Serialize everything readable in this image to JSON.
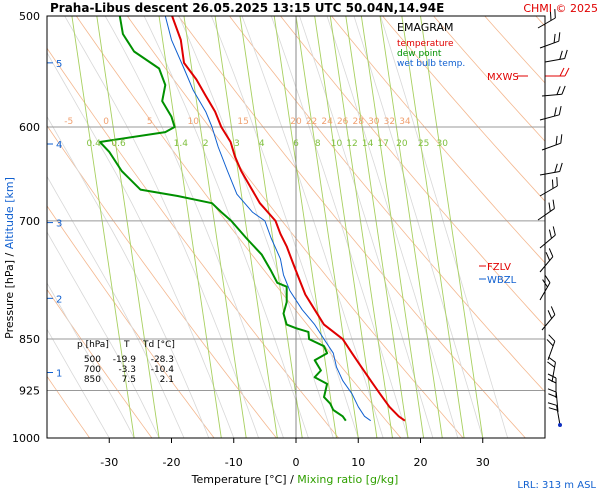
{
  "header": {
    "title": "Praha-Libus   descent   26.05.2025 13:15 UTC   50.04N,14.94E",
    "copyright": "CHMI © 2025"
  },
  "legend": {
    "title": "EMAGRAM",
    "items": [
      {
        "label": "temperature",
        "color": "#e00000"
      },
      {
        "label": "dew point",
        "color": "#009000"
      },
      {
        "label": "wet bulb temp.",
        "color": "#1060d0"
      }
    ]
  },
  "markers": {
    "mxws": {
      "label": "MXWS",
      "color": "#e00000"
    },
    "fzlv": {
      "label": "FZLV",
      "color": "#e00000"
    },
    "wbzl": {
      "label": "WBZL",
      "color": "#1060d0"
    }
  },
  "axes": {
    "ylabel_pressure": "Pressure [hPa]",
    "ylabel_sep": " / ",
    "ylabel_altitude": "Altitude [km]",
    "xlabel_temperature": "Temperature [°C]",
    "xlabel_sep": " / ",
    "xlabel_mixing": "Mixing ratio [g/kg]"
  },
  "lrl": "LRL: 313 m ASL",
  "table": {
    "header": [
      "p [hPa]",
      "T",
      "Td [°C]"
    ],
    "rows": [
      [
        "500",
        "-19.9",
        "-28.3"
      ],
      [
        "700",
        "-3.3",
        "-10.4"
      ],
      [
        "850",
        "7.5",
        "2.1"
      ]
    ]
  },
  "chart_data": {
    "type": "line",
    "x_range": [
      -40,
      40
    ],
    "y_range_hpa": [
      1000,
      500
    ],
    "pressure_ticks": [
      "500",
      "600",
      "700",
      "850",
      "925",
      "1000"
    ],
    "pressure_tick_values": [
      500,
      600,
      700,
      850,
      925,
      1000
    ],
    "temperature_ticks": [
      "-30",
      "-20",
      "-10",
      "0",
      "10",
      "20",
      "30"
    ],
    "temperature_tick_values": [
      -30,
      -20,
      -10,
      0,
      10,
      20,
      30
    ],
    "altitude_ticks": [
      "1",
      "2",
      "3",
      "4",
      "5"
    ],
    "altitude_tick_pressures": [
      898,
      795,
      702,
      617,
      540
    ],
    "isotherm_labels": [
      "-5",
      "0",
      "5",
      "10",
      "15",
      "20",
      "22",
      "24",
      "26",
      "28",
      "30",
      "32",
      "34"
    ],
    "isotherm_label_temps": [
      -36.5,
      -30.5,
      -23.5,
      -16.5,
      -8.5,
      0,
      2.5,
      5,
      7.5,
      10,
      12.5,
      15,
      17.5
    ],
    "mixing_labels": [
      "0.4",
      "0.6",
      "1.4",
      "2",
      "3",
      "4",
      "6",
      "8",
      "10",
      "12",
      "14",
      "17",
      "20",
      "25",
      "30"
    ],
    "mixing_label_temps": [
      -32.5,
      -28.5,
      -18.5,
      -14.5,
      -9.5,
      -5.5,
      0,
      3.5,
      6.5,
      9,
      11.5,
      14,
      17,
      20.5,
      23.5
    ],
    "series": [
      {
        "name": "temperature",
        "color": "#e00000",
        "points": [
          [
            -19.9,
            500
          ],
          [
            -18.5,
            520
          ],
          [
            -18,
            540
          ],
          [
            -16,
            555
          ],
          [
            -14.5,
            570
          ],
          [
            -13,
            585
          ],
          [
            -12,
            600
          ],
          [
            -10.5,
            615
          ],
          [
            -9.8,
            630
          ],
          [
            -8.8,
            645
          ],
          [
            -7.5,
            660
          ],
          [
            -5.8,
            680
          ],
          [
            -3.3,
            700
          ],
          [
            -2.5,
            715
          ],
          [
            -1.5,
            730
          ],
          [
            -0.5,
            750
          ],
          [
            0.5,
            770
          ],
          [
            1.5,
            790
          ],
          [
            3,
            810
          ],
          [
            4.5,
            830
          ],
          [
            7.5,
            850
          ],
          [
            9,
            870
          ],
          [
            10.5,
            890
          ],
          [
            12,
            910
          ],
          [
            13.5,
            930
          ],
          [
            15,
            950
          ],
          [
            16.5,
            965
          ],
          [
            17.5,
            972
          ]
        ]
      },
      {
        "name": "dew point",
        "color": "#009000",
        "points": [
          [
            -28.3,
            500
          ],
          [
            -27.8,
            515
          ],
          [
            -26,
            530
          ],
          [
            -22,
            545
          ],
          [
            -21,
            560
          ],
          [
            -21.5,
            575
          ],
          [
            -20,
            590
          ],
          [
            -19.5,
            600
          ],
          [
            -21,
            605
          ],
          [
            -31.5,
            615
          ],
          [
            -30,
            625
          ],
          [
            -28,
            645
          ],
          [
            -25,
            665
          ],
          [
            -19,
            672
          ],
          [
            -13.5,
            680
          ],
          [
            -12,
            690
          ],
          [
            -10.4,
            700
          ],
          [
            -8,
            720
          ],
          [
            -5.5,
            740
          ],
          [
            -4,
            760
          ],
          [
            -3,
            775
          ],
          [
            -1.5,
            780
          ],
          [
            -1.5,
            800
          ],
          [
            -2,
            815
          ],
          [
            -1.5,
            830
          ],
          [
            0,
            835
          ],
          [
            2,
            840
          ],
          [
            2.1,
            850
          ],
          [
            4.5,
            860
          ],
          [
            5,
            870
          ],
          [
            3,
            880
          ],
          [
            4,
            895
          ],
          [
            3,
            905
          ],
          [
            5,
            915
          ],
          [
            4.5,
            935
          ],
          [
            5.5,
            945
          ],
          [
            6,
            955
          ],
          [
            7.5,
            965
          ],
          [
            8,
            972
          ]
        ]
      },
      {
        "name": "wet bulb temp.",
        "color": "#1060d0",
        "points": [
          [
            -21,
            500
          ],
          [
            -20,
            520
          ],
          [
            -18,
            545
          ],
          [
            -16.5,
            565
          ],
          [
            -14.5,
            585
          ],
          [
            -13.5,
            600
          ],
          [
            -12.5,
            620
          ],
          [
            -11,
            645
          ],
          [
            -9.5,
            670
          ],
          [
            -7,
            690
          ],
          [
            -5,
            700
          ],
          [
            -4,
            720
          ],
          [
            -2.5,
            745
          ],
          [
            -2,
            765
          ],
          [
            -1,
            785
          ],
          [
            1,
            810
          ],
          [
            3,
            830
          ],
          [
            4.5,
            850
          ],
          [
            6,
            870
          ],
          [
            6.5,
            890
          ],
          [
            7.5,
            910
          ],
          [
            9,
            930
          ],
          [
            10,
            950
          ],
          [
            11,
            965
          ],
          [
            12,
            972
          ]
        ]
      }
    ]
  }
}
